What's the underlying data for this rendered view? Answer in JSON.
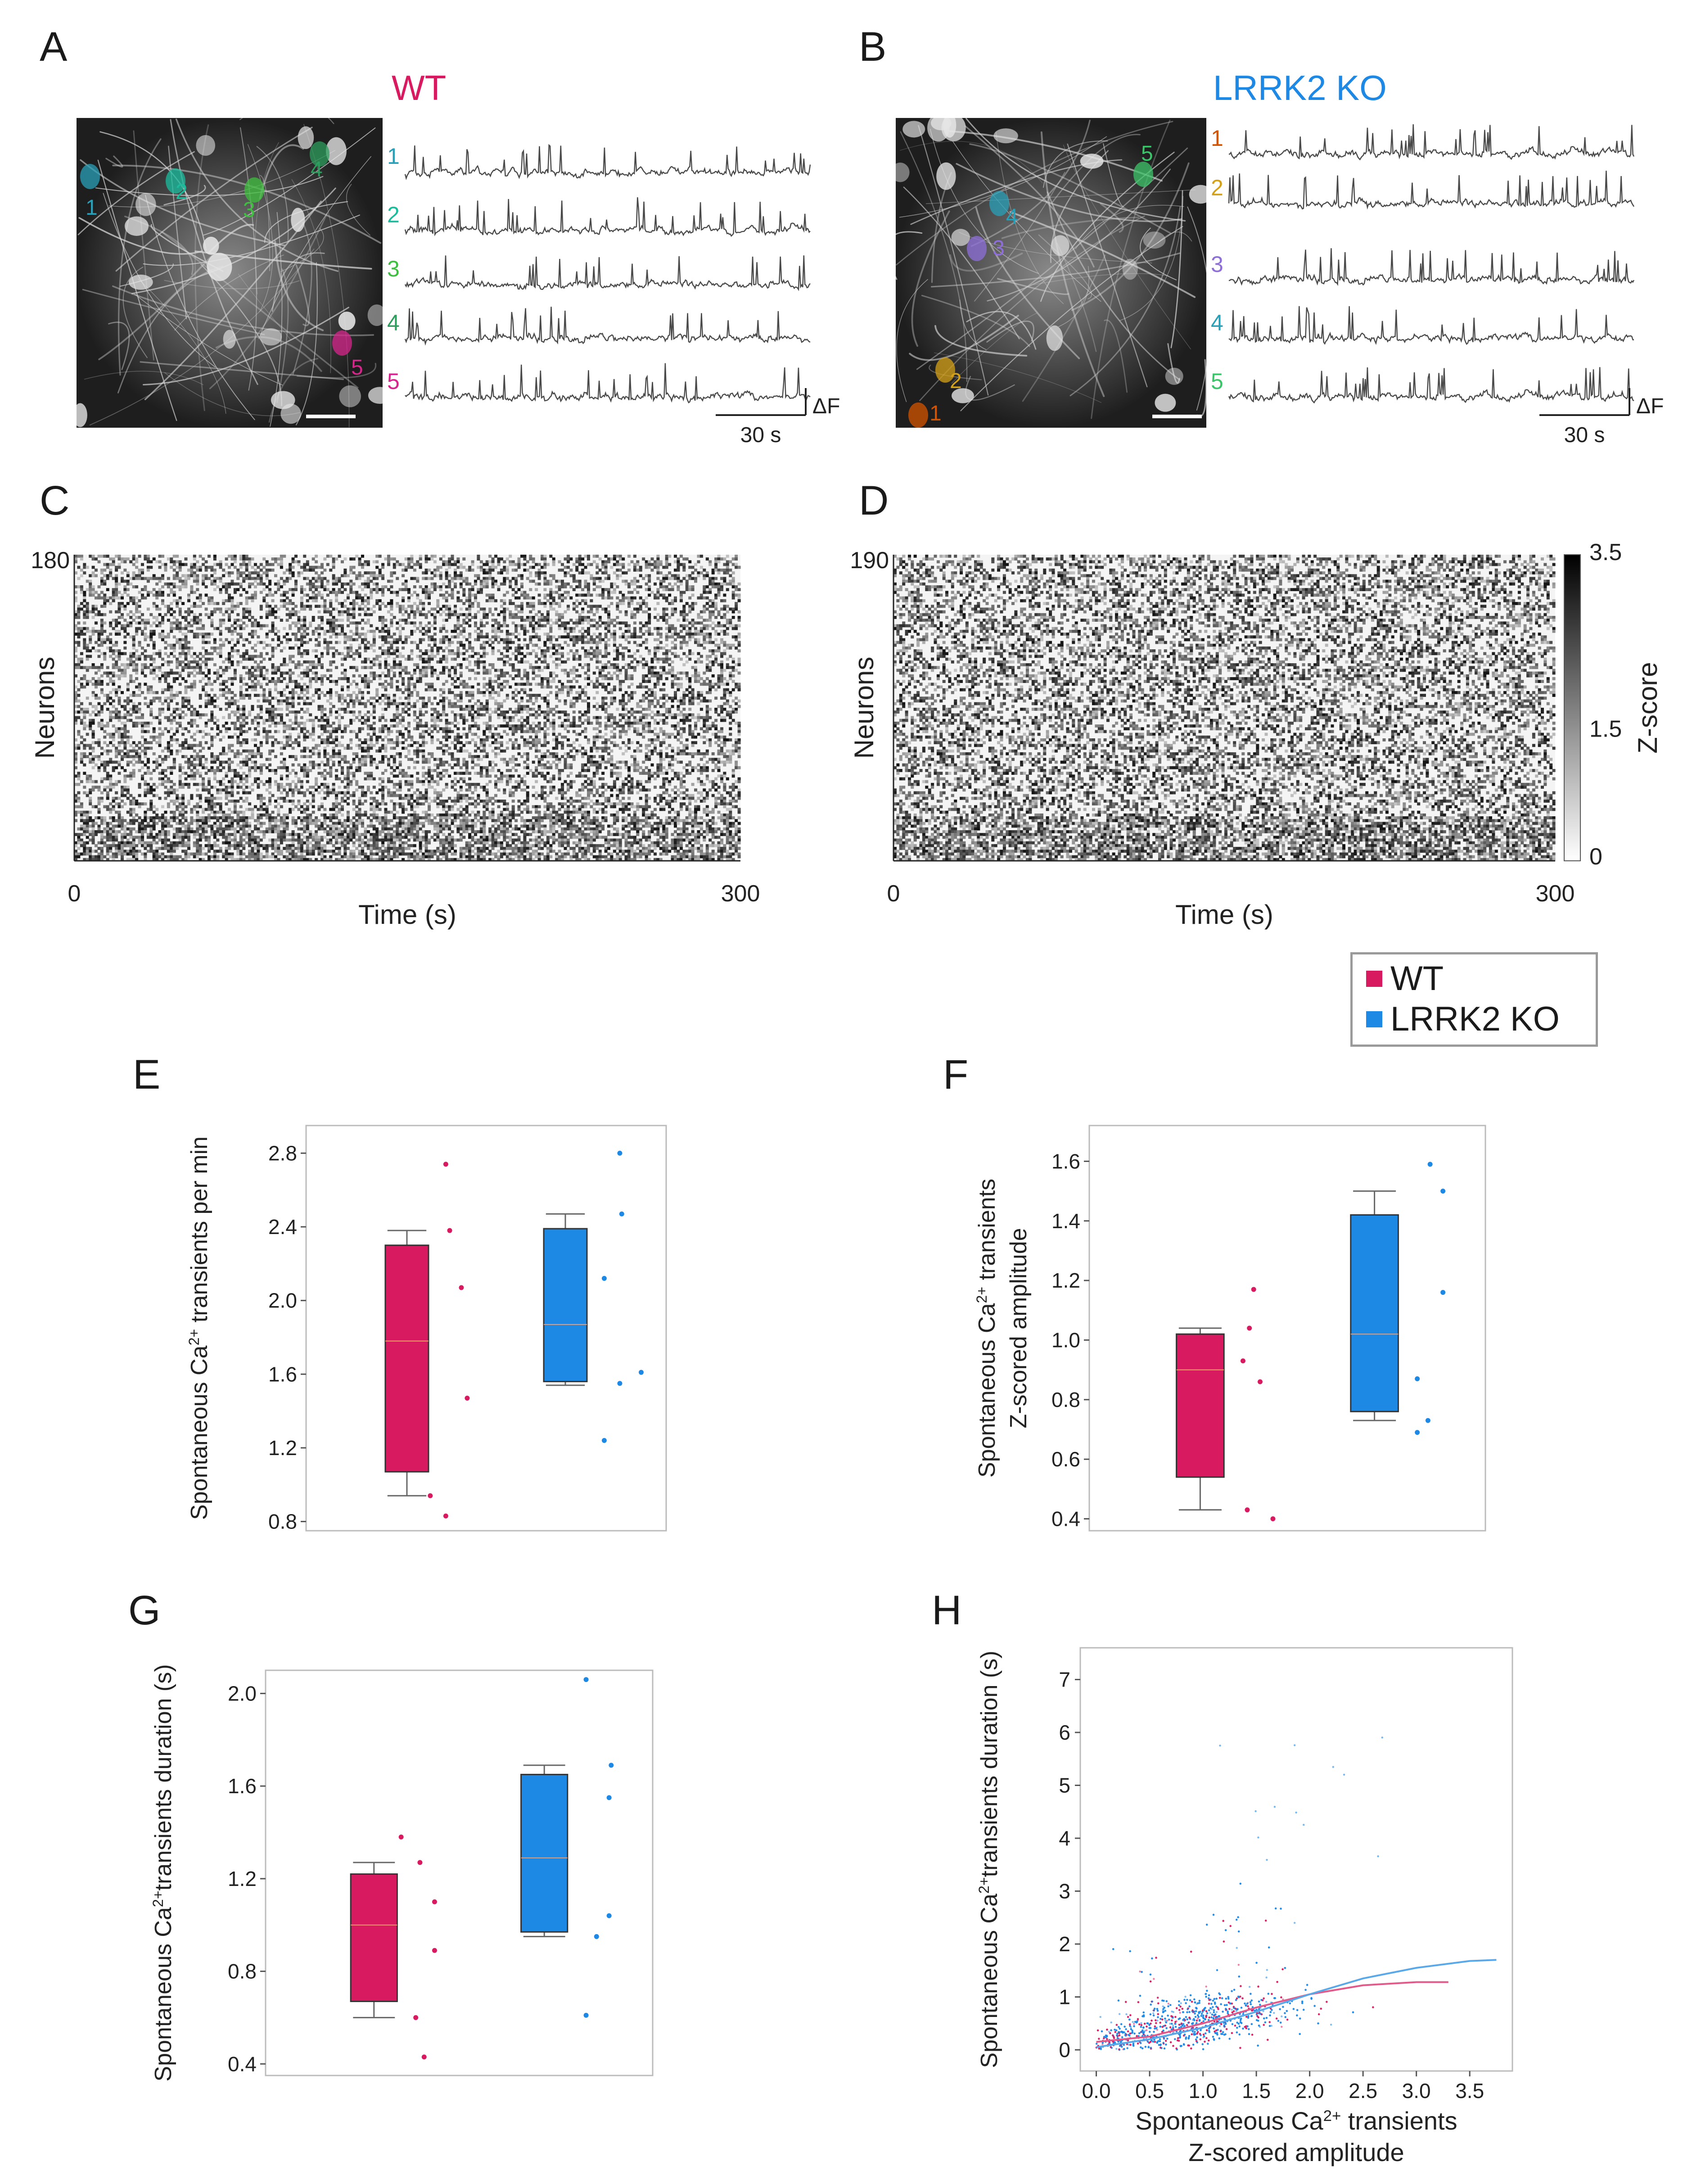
{
  "panel_labels": [
    "A",
    "B",
    "C",
    "D",
    "E",
    "F",
    "G",
    "H"
  ],
  "colors": {
    "wt": "#d81b60",
    "ko": "#1e88e5",
    "wt_line": "#e05a8a",
    "ko_line": "#5aa8e8",
    "median": "#f39c6b"
  },
  "panel_A": {
    "title": "WT",
    "cells": [
      {
        "label": "1",
        "color": "#2aa0b8"
      },
      {
        "label": "2",
        "color": "#1abc9c"
      },
      {
        "label": "3",
        "color": "#3fbf3f"
      },
      {
        "label": "4",
        "color": "#2e9e5e"
      },
      {
        "label": "5",
        "color": "#d6268c"
      }
    ],
    "trace_labels": [
      "1",
      "2",
      "3",
      "4",
      "5"
    ],
    "scale_time": "30 s",
    "scale_df": "ΔF"
  },
  "panel_B": {
    "title": "LRRK2 KO",
    "cells": [
      {
        "label": "1",
        "color": "#d35400"
      },
      {
        "label": "2",
        "color": "#d4a017"
      },
      {
        "label": "3",
        "color": "#8e6fd8"
      },
      {
        "label": "4",
        "color": "#2aa0b8"
      },
      {
        "label": "5",
        "color": "#3cc46a"
      }
    ],
    "trace_labels": [
      "1",
      "2",
      "3",
      "4",
      "5"
    ],
    "scale_time": "30 s",
    "scale_df": "ΔF"
  },
  "chart_data": [
    {
      "id": "C",
      "type": "heatmap",
      "title": "",
      "ylabel": "Neurons",
      "xlabel": "Time (s)",
      "xlim": [
        0,
        300
      ],
      "y_max_label": "180",
      "x_tick_labels": [
        "0",
        "300"
      ]
    },
    {
      "id": "D",
      "type": "heatmap",
      "title": "",
      "ylabel": "Neurons",
      "xlabel": "Time (s)",
      "xlim": [
        0,
        300
      ],
      "y_max_label": "190",
      "x_tick_labels": [
        "0",
        "300"
      ],
      "colorbar": {
        "label": "Z-score",
        "ticks": [
          "3.5",
          "1.5",
          "0"
        ],
        "range": [
          0,
          3.5
        ]
      }
    },
    {
      "id": "E",
      "type": "box",
      "ylabel_parts": [
        "Spontaneous Ca",
        "2+",
        " transients per min"
      ],
      "ylim": [
        0.75,
        2.95
      ],
      "yticks": [
        0.8,
        1.2,
        1.6,
        2.0,
        2.4,
        2.8
      ],
      "ytick_labels": [
        "0.8",
        "1.2",
        "1.6",
        "2.0",
        "2.4",
        "2.8"
      ],
      "groups": [
        {
          "name": "WT",
          "q1": 1.07,
          "median": 1.78,
          "q3": 2.3,
          "whisker_low": 0.94,
          "whisker_high": 2.38,
          "points": [
            2.74,
            2.38,
            2.07,
            1.47,
            0.94,
            0.83
          ],
          "point_offsets": [
            0.0,
            0.1,
            0.4,
            0.55,
            -0.4,
            0.0
          ]
        },
        {
          "name": "LRRK2 KO",
          "q1": 1.56,
          "median": 1.87,
          "q3": 2.39,
          "whisker_low": 1.54,
          "whisker_high": 2.47,
          "points": [
            2.8,
            2.47,
            2.12,
            1.55,
            1.24,
            1.61
          ],
          "point_offsets": [
            0.4,
            0.45,
            0.0,
            0.4,
            0.0,
            0.95
          ]
        }
      ]
    },
    {
      "id": "F",
      "type": "box",
      "ylabel_parts": [
        "Spontaneous Ca",
        "2+",
        " transients",
        "Z-scored amplitude"
      ],
      "ylim": [
        0.36,
        1.72
      ],
      "yticks": [
        0.4,
        0.6,
        0.8,
        1.0,
        1.2,
        1.4,
        1.6
      ],
      "ytick_labels": [
        "0.4",
        "0.6",
        "0.8",
        "1.0",
        "1.2",
        "1.4",
        "1.6"
      ],
      "groups": [
        {
          "name": "WT",
          "q1": 0.54,
          "median": 0.9,
          "q3": 1.02,
          "whisker_low": 0.43,
          "whisker_high": 1.04,
          "points": [
            1.17,
            1.04,
            0.93,
            0.86,
            0.43,
            0.4
          ],
          "point_offsets": [
            0.25,
            0.15,
            0.0,
            0.4,
            0.1,
            0.7
          ]
        },
        {
          "name": "LRRK2 KO",
          "q1": 0.76,
          "median": 1.02,
          "q3": 1.42,
          "whisker_low": 0.73,
          "whisker_high": 1.5,
          "points": [
            1.59,
            1.5,
            1.16,
            0.87,
            0.73,
            0.69
          ],
          "point_offsets": [
            0.3,
            0.6,
            0.6,
            0.0,
            0.25,
            0.0
          ]
        }
      ]
    },
    {
      "id": "G",
      "type": "box",
      "ylabel_parts": [
        "Spontaneous Ca",
        "2+",
        "transients duration (s)"
      ],
      "ylim": [
        0.35,
        2.1
      ],
      "yticks": [
        0.4,
        0.8,
        1.2,
        1.6,
        2.0
      ],
      "ytick_labels": [
        "0.4",
        "0.8",
        "1.2",
        "1.6",
        "2.0"
      ],
      "groups": [
        {
          "name": "WT",
          "q1": 0.67,
          "median": 1.0,
          "q3": 1.22,
          "whisker_low": 0.6,
          "whisker_high": 1.27,
          "points": [
            1.38,
            1.27,
            1.1,
            0.89,
            0.6,
            0.43
          ],
          "point_offsets": [
            -0.35,
            0.1,
            0.45,
            0.45,
            0.0,
            0.2
          ]
        },
        {
          "name": "LRRK2 KO",
          "q1": 0.97,
          "median": 1.29,
          "q3": 1.65,
          "whisker_low": 0.95,
          "whisker_high": 1.69,
          "points": [
            2.06,
            1.69,
            1.55,
            1.04,
            0.95,
            0.61
          ],
          "point_offsets": [
            0.0,
            0.6,
            0.55,
            0.55,
            0.25,
            0.0
          ]
        }
      ]
    },
    {
      "id": "H",
      "type": "scatter",
      "xlabel_parts": [
        "Spontaneous Ca",
        "2+",
        " transients",
        "Z-scored amplitude"
      ],
      "ylabel_parts": [
        "Spontaneous Ca",
        "2+",
        "transients duration (s)"
      ],
      "xlim": [
        -0.15,
        3.9
      ],
      "ylim": [
        -0.4,
        7.6
      ],
      "xticks": [
        0.0,
        0.5,
        1.0,
        1.5,
        2.0,
        2.5,
        3.0,
        3.5
      ],
      "xtick_labels": [
        "0.0",
        "0.5",
        "1.0",
        "1.5",
        "2.0",
        "2.5",
        "3.0",
        "3.5"
      ],
      "yticks": [
        0,
        1,
        2,
        3,
        4,
        5,
        6,
        7
      ],
      "ytick_labels": [
        "0",
        "1",
        "2",
        "3",
        "4",
        "5",
        "6",
        "7"
      ],
      "series": [
        {
          "name": "WT",
          "fit_x": [
            0.0,
            0.5,
            1.0,
            1.5,
            2.0,
            2.5,
            3.0,
            3.3
          ],
          "fit_y": [
            0.15,
            0.25,
            0.5,
            0.8,
            1.05,
            1.22,
            1.28,
            1.28
          ]
        },
        {
          "name": "LRRK2 KO",
          "fit_x": [
            0.0,
            0.5,
            1.0,
            1.5,
            2.0,
            2.5,
            3.0,
            3.5,
            3.75
          ],
          "fit_y": [
            0.05,
            0.2,
            0.42,
            0.72,
            1.05,
            1.35,
            1.55,
            1.68,
            1.7
          ]
        }
      ]
    }
  ],
  "legend": {
    "items": [
      {
        "label": "WT"
      },
      {
        "label": "LRRK2 KO"
      }
    ]
  }
}
